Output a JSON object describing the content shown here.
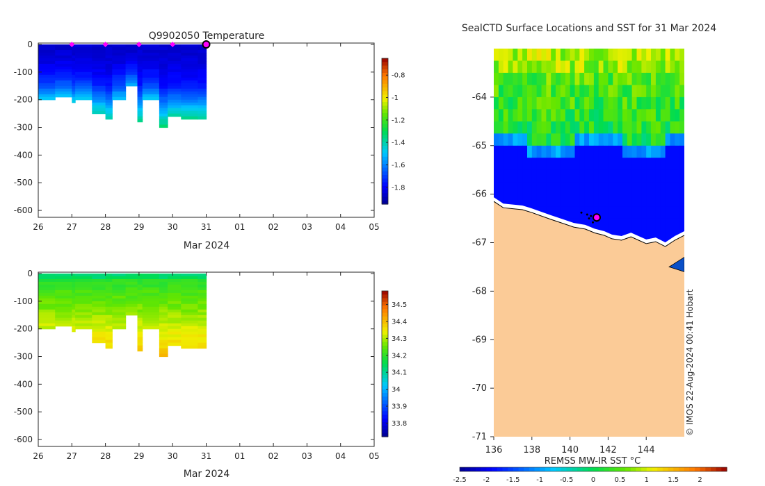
{
  "left_title": "Q9902050  Temperature",
  "left_xlabel": "Mar 2024",
  "right_title": "SealCTD Surface Locations and SST for 31 Mar 2024",
  "right_colorbar_label": "REMSS MW-IR SST °C",
  "watermark": "© IMOS 22-Aug-2024 00:41 Hobart",
  "colors": {
    "land": "#fbcb97",
    "ocean_cold": "#0a4fc7",
    "track": "#000000",
    "marker": "#ff00ff"
  },
  "chart_data": [
    {
      "type": "heatmap",
      "name": "temperature-profile",
      "title": "Q9902050  Temperature",
      "xlabel": "Mar 2024",
      "ylabel": "",
      "x_ticks": [
        "26",
        "27",
        "28",
        "29",
        "30",
        "31",
        "01",
        "02",
        "03",
        "04",
        "05"
      ],
      "x_range_days": [
        26,
        36
      ],
      "y_ticks": [
        0,
        -100,
        -200,
        -300,
        -400,
        -500,
        -600
      ],
      "ylim": [
        -625,
        5
      ],
      "colorbar": {
        "min": -1.95,
        "max": -0.65,
        "ticks": [
          "-0.8",
          "-1",
          "-1.2",
          "-1.4",
          "-1.6",
          "-1.8"
        ],
        "tick_values": [
          -0.8,
          -1.0,
          -1.2,
          -1.4,
          -1.6,
          -1.8
        ]
      },
      "profiles": [
        {
          "day": 26.0,
          "depth": 200
        },
        {
          "day": 26.5,
          "depth": 185
        },
        {
          "day": 27.0,
          "depth": 210
        },
        {
          "day": 27.1,
          "depth": 200
        },
        {
          "day": 27.6,
          "depth": 245
        },
        {
          "day": 28.0,
          "depth": 270
        },
        {
          "day": 28.2,
          "depth": 200
        },
        {
          "day": 28.6,
          "depth": 150
        },
        {
          "day": 28.95,
          "depth": 275
        },
        {
          "day": 29.1,
          "depth": 200
        },
        {
          "day": 29.6,
          "depth": 295
        },
        {
          "day": 29.85,
          "depth": 260
        },
        {
          "day": 30.25,
          "depth": 265
        },
        {
          "day": 30.75,
          "depth": 262
        }
      ],
      "surface_markers_day": [
        27,
        28,
        29,
        30
      ],
      "current_marker_day": 31
    },
    {
      "type": "heatmap",
      "name": "salinity-profile",
      "title": "",
      "xlabel": "Mar 2024",
      "ylabel": "",
      "x_ticks": [
        "26",
        "27",
        "28",
        "29",
        "30",
        "31",
        "01",
        "02",
        "03",
        "04",
        "05"
      ],
      "x_range_days": [
        26,
        36
      ],
      "y_ticks": [
        0,
        -100,
        -200,
        -300,
        -400,
        -500,
        -600
      ],
      "ylim": [
        -625,
        5
      ],
      "colorbar": {
        "min": 33.72,
        "max": 34.58,
        "ticks": [
          "34.5",
          "34.4",
          "34.3",
          "34.2",
          "34.1",
          "34",
          "33.9",
          "33.8"
        ],
        "tick_values": [
          34.5,
          34.4,
          34.3,
          34.2,
          34.1,
          34.0,
          33.9,
          33.8
        ]
      },
      "profiles": [
        {
          "day": 26.0,
          "depth": 200
        },
        {
          "day": 26.5,
          "depth": 185
        },
        {
          "day": 27.0,
          "depth": 210
        },
        {
          "day": 27.1,
          "depth": 200
        },
        {
          "day": 27.6,
          "depth": 245
        },
        {
          "day": 28.0,
          "depth": 270
        },
        {
          "day": 28.2,
          "depth": 200
        },
        {
          "day": 28.6,
          "depth": 150
        },
        {
          "day": 28.95,
          "depth": 275
        },
        {
          "day": 29.1,
          "depth": 200
        },
        {
          "day": 29.6,
          "depth": 295
        },
        {
          "day": 29.85,
          "depth": 260
        },
        {
          "day": 30.25,
          "depth": 265
        },
        {
          "day": 30.75,
          "depth": 262
        }
      ]
    },
    {
      "type": "heatmap",
      "name": "sst-map",
      "title": "SealCTD Surface Locations and SST for 31 Mar 2024",
      "xlabel": "",
      "ylabel": "",
      "x_ticks": [
        "136",
        "138",
        "140",
        "142",
        "144"
      ],
      "x_tick_values": [
        136,
        138,
        140,
        142,
        144
      ],
      "xlim": [
        136,
        146
      ],
      "y_ticks": [
        "-64",
        "-65",
        "-66",
        "-67",
        "-68",
        "-69",
        "-70",
        "-71"
      ],
      "y_tick_values": [
        -64,
        -65,
        -66,
        -67,
        -68,
        -69,
        -70,
        -71
      ],
      "ylim": [
        -71,
        -63
      ],
      "colorbar": {
        "min": -2.5,
        "max": 2.5,
        "ticks": [
          "-2.5",
          "-2",
          "-1.5",
          "-1",
          "-0.5",
          "0",
          "0.5",
          "1",
          "1.5",
          "2"
        ],
        "tick_values": [
          -2.5,
          -2,
          -1.5,
          -1,
          -0.5,
          0,
          0.5,
          1,
          1.5,
          2
        ],
        "label": "REMSS MW-IR SST °C"
      },
      "coastline": [
        [
          136,
          -66.15
        ],
        [
          136.5,
          -66.28
        ],
        [
          137,
          -66.3
        ],
        [
          137.5,
          -66.32
        ],
        [
          138,
          -66.38
        ],
        [
          138.5,
          -66.45
        ],
        [
          139,
          -66.52
        ],
        [
          139.6,
          -66.6
        ],
        [
          140.2,
          -66.68
        ],
        [
          140.8,
          -66.72
        ],
        [
          141.3,
          -66.8
        ],
        [
          141.8,
          -66.85
        ],
        [
          142.2,
          -66.92
        ],
        [
          142.7,
          -66.95
        ],
        [
          143.2,
          -66.88
        ],
        [
          143.6,
          -66.95
        ],
        [
          144.0,
          -67.02
        ],
        [
          144.5,
          -66.98
        ],
        [
          145.0,
          -67.08
        ],
        [
          145.5,
          -66.95
        ],
        [
          146,
          -66.85
        ]
      ],
      "track": [
        [
          140.6,
          -66.38
        ],
        [
          140.9,
          -66.42
        ],
        [
          141.1,
          -66.45
        ],
        [
          141.3,
          -66.5
        ],
        [
          141.4,
          -66.55
        ],
        [
          141.2,
          -66.58
        ],
        [
          141.0,
          -66.5
        ]
      ],
      "current_position": [
        141.4,
        -66.48
      ]
    }
  ]
}
